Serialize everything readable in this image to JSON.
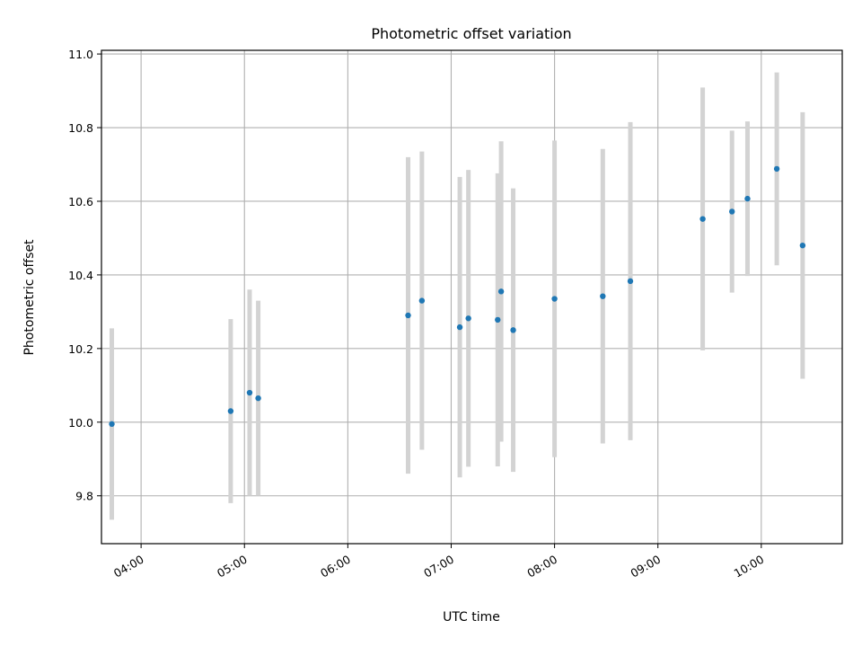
{
  "chart_data": {
    "type": "scatter",
    "title": "Photometric offset variation",
    "xlabel": "UTC time",
    "ylabel": "Photometric offset",
    "x_ticks": [
      "04:00",
      "05:00",
      "06:00",
      "07:00",
      "08:00",
      "09:00",
      "10:00"
    ],
    "y_ticks": [
      "9.8",
      "10.0",
      "10.2",
      "10.4",
      "10.6",
      "10.8",
      "11.0"
    ],
    "xlim": [
      "03:37",
      "10:47"
    ],
    "ylim": [
      9.67,
      11.01
    ],
    "grid": true,
    "marker_color": "#1f77b4",
    "errorbar_color": "#d3d3d3",
    "points": [
      {
        "time": "03:43",
        "y": 9.995,
        "yerr": 0.26
      },
      {
        "time": "04:52",
        "y": 10.03,
        "yerr": 0.25
      },
      {
        "time": "05:03",
        "y": 10.08,
        "yerr": 0.28
      },
      {
        "time": "05:08",
        "y": 10.065,
        "yerr": 0.265
      },
      {
        "time": "06:35",
        "y": 10.29,
        "yerr": 0.43
      },
      {
        "time": "06:43",
        "y": 10.33,
        "yerr": 0.405
      },
      {
        "time": "07:05",
        "y": 10.258,
        "yerr": 0.408
      },
      {
        "time": "07:10",
        "y": 10.282,
        "yerr": 0.403
      },
      {
        "time": "07:27",
        "y": 10.278,
        "yerr": 0.398
      },
      {
        "time": "07:29",
        "y": 10.355,
        "yerr": 0.408
      },
      {
        "time": "07:36",
        "y": 10.25,
        "yerr": 0.385
      },
      {
        "time": "08:00",
        "y": 10.335,
        "yerr": 0.43
      },
      {
        "time": "08:28",
        "y": 10.342,
        "yerr": 0.4
      },
      {
        "time": "08:44",
        "y": 10.383,
        "yerr": 0.432
      },
      {
        "time": "09:26",
        "y": 10.552,
        "yerr": 0.357
      },
      {
        "time": "09:43",
        "y": 10.572,
        "yerr": 0.22
      },
      {
        "time": "09:52",
        "y": 10.607,
        "yerr": 0.21
      },
      {
        "time": "10:09",
        "y": 10.688,
        "yerr": 0.262
      },
      {
        "time": "10:24",
        "y": 10.48,
        "yerr": 0.362
      }
    ]
  }
}
